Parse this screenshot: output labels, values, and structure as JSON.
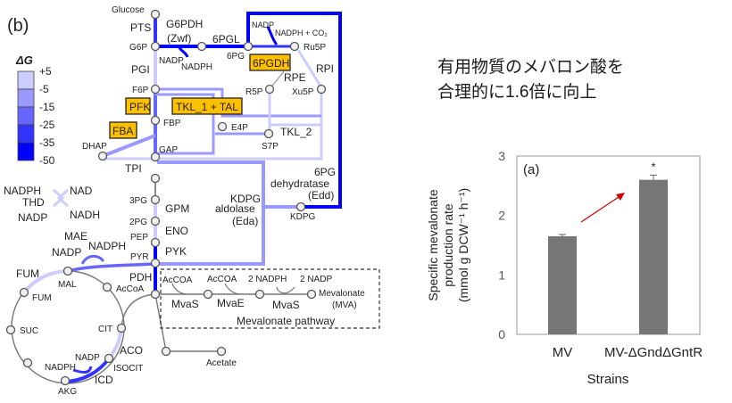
{
  "panel_b": "(b)",
  "legend": {
    "title": "ΔG",
    "ticks": [
      "+5",
      "-5",
      "-15",
      "-25",
      "-35",
      "-50"
    ],
    "colors": [
      "#ccccff",
      "#9999ff",
      "#6666ff",
      "#3333ff",
      "#0000ff"
    ]
  },
  "labels": {
    "glucose": "Glucose",
    "pts": "PTS",
    "g6p": "G6P",
    "g6pdh": "G6PDH",
    "zwf": "(Zwf)",
    "nadp1": "NADP",
    "nadph1": "NADPH",
    "pgl": "6PGL",
    "pg6": "6PG",
    "nadp2": "NADP",
    "nadph2": "NADPH + CO₂",
    "ru5p": "Ru5P",
    "pgdh": "6PGDH",
    "rpi": "RPI",
    "rpe": "RPE",
    "pgi": "PGI",
    "f6p": "F6P",
    "r5p": "R5P",
    "xu5p": "Xu5P",
    "pfk": "PFK",
    "tkl1": "TKL_1 + TAL",
    "fbp": "FBP",
    "e4p": "E4P",
    "tkl2": "TKL_2",
    "s7p": "S7P",
    "fba": "FBA",
    "dhap": "DHAP",
    "gap": "GAP",
    "tpi": "TPI",
    "edd1": "6PG",
    "edd2": "dehydratase",
    "edd3": "(Edd)",
    "nadph_t": "NADPH",
    "nad_t": "NAD",
    "thd": "THD",
    "nadp_t": "NADP",
    "nadh_t": "NADH",
    "pg3": "3PG",
    "gpm": "GPM",
    "eda1": "KDPG",
    "eda2": "aldolase",
    "eda3": "(Eda)",
    "pg2": "2PG",
    "eno": "ENO",
    "kdpg": "KDPG",
    "mae": "MAE",
    "nadp_m": "NADP",
    "nadph_m": "NADPH",
    "pep": "PEP",
    "pyk": "PYK",
    "pyr": "PYR",
    "fum1": "FUM",
    "mal": "MAL",
    "fum2": "FUM",
    "pdh": "PDH",
    "accoa": "AcCoA",
    "accoa1": "AcCOA",
    "accoa2": "AcCOA",
    "nadph_mv": "2 NADPH",
    "nadp_mv": "2 NADP",
    "mvas1": "MvaS",
    "mvae": "MvaE",
    "mvas2": "MvaS",
    "mva1": "Mevalonate",
    "mva2": "(MVA)",
    "mvpath": "Mevalonate pathway",
    "suc": "SUC",
    "cit": "CIT",
    "aco": "ACO",
    "nadp_i": "NADP",
    "nadph_i": "NADPH",
    "isocit": "ISOCIT",
    "icd": "ICD",
    "akg": "AKG",
    "acetate": "Acetate"
  },
  "headline": [
    "有用物質のメバロン酸を",
    "合理的に1.6倍に向上"
  ],
  "chart_data": {
    "type": "bar",
    "panel_label": "(a)",
    "categories": [
      "MV",
      "MV-ΔGndΔGntR"
    ],
    "values": [
      1.65,
      2.6
    ],
    "errors": [
      0.03,
      0.08
    ],
    "significance": [
      "",
      "*"
    ],
    "xlabel": "Strains",
    "ylabel_lines": [
      "Specific mevalonate",
      "production rate",
      "(mmol g DCW⁻¹ h⁻¹)"
    ],
    "yticks": [
      "0",
      "1",
      "2",
      "3"
    ],
    "ylim": [
      0,
      3
    ],
    "bar_color": "#767676",
    "arrow_color": "#d00000"
  }
}
